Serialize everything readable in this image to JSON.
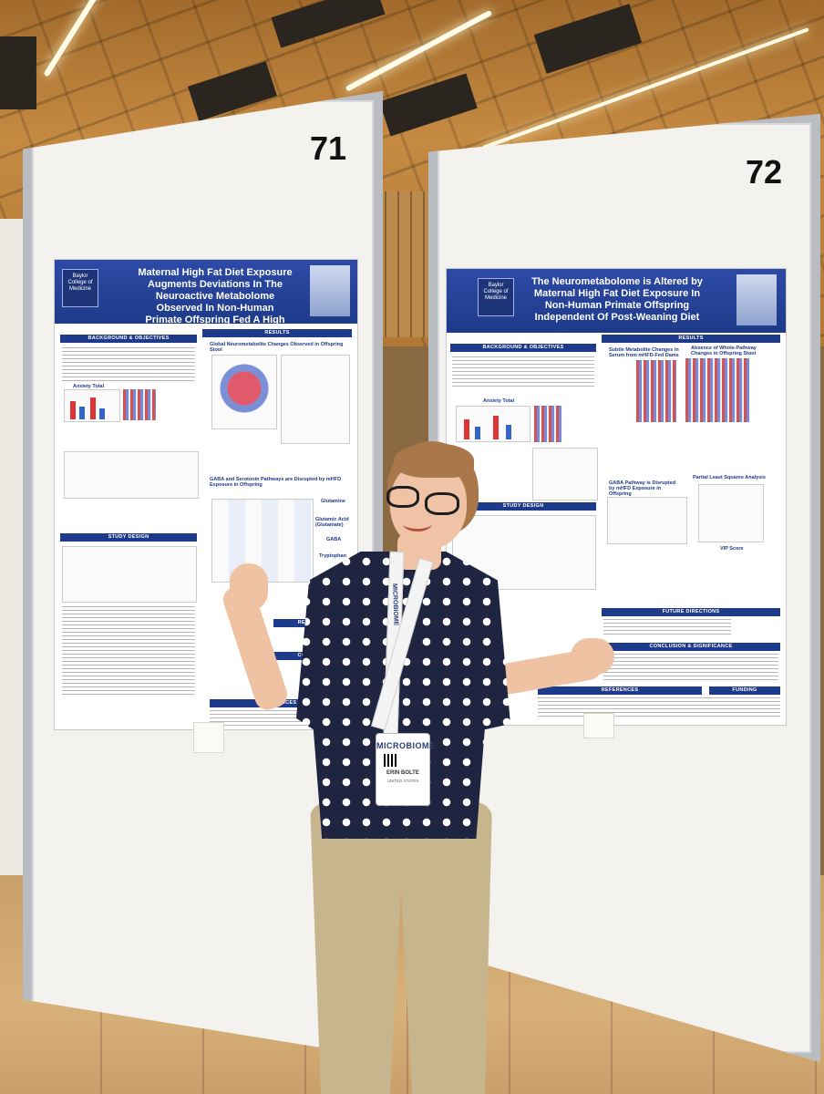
{
  "scene": {
    "board_left_number": "71",
    "board_right_number": "72"
  },
  "poster_left": {
    "title": "Maternal High Fat Diet Exposure Augments Deviations In The Neuroactive Metabolome Observed In Non-Human Primate Offspring Fed A High Fat Diet",
    "institution": "Baylor College of Medicine",
    "sections": {
      "background": "BACKGROUND & OBJECTIVES",
      "results": "RESULTS",
      "study_design": "STUDY DESIGN",
      "directions": "RECTIONS",
      "conclusion": "CONCLUSI",
      "references": "REFERENCES"
    },
    "figure_labels": {
      "global": "Global Neurometabolite Changes Observed in Offspring Stool",
      "gaba": "GABA and Serotonin Pathways are Disrupted by mHFD Exposure in Offspring",
      "glutamine": "Glutamine",
      "glutamic_acid": "Glutamic Acid (Glutamate)",
      "gaba_short": "GABA",
      "tryptophan": "Tryptophan",
      "anxiety": "Anxiety Total"
    }
  },
  "poster_right": {
    "title": "The Neurometabolome is Altered by Maternal High Fat Diet Exposure In Non-Human Primate Offspring Independent Of Post-Weaning Diet",
    "institution": "Baylor College of Medicine",
    "sections": {
      "background": "BACKGROUND & OBJECTIVES",
      "results": "RESULTS",
      "study_design": "STUDY DESIGN",
      "future": "FUTURE DIRECTIONS",
      "conclusion": "CONCLUSION & SIGNIFICANCE",
      "references": "REFERENCES",
      "funding": "FUNDING"
    },
    "figure_labels": {
      "subtle": "Subtle Metabolite Changes in Serum from mHFD-Fed Dams",
      "absence": "Absence of Whole-Pathway Changes in Offspring Stool",
      "pls": "Partial Least Squares Analysis",
      "gaba_disrupted": "GABA Pathway is Disrupted by mHFD Exposure in Offspring",
      "vip": "VIP Score",
      "anxiety": "Anxiety Total"
    }
  },
  "badge": {
    "brand": "MICROBIOME",
    "name": "ERIN BOLTE",
    "country": "UNITED STATES"
  },
  "lanyard_text": "MICROBIOME"
}
